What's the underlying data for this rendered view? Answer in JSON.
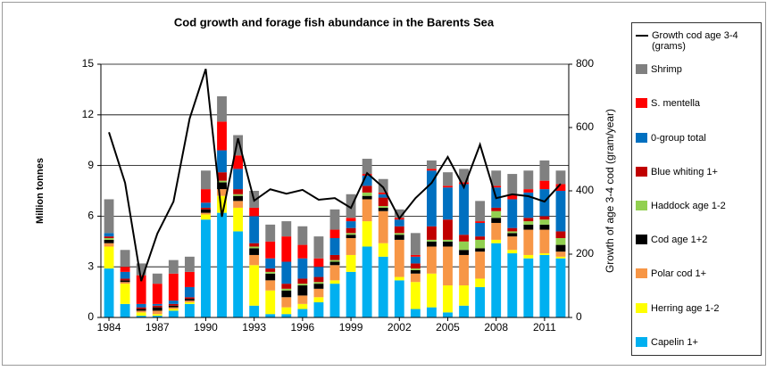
{
  "chart_data": {
    "type": "bar",
    "stacked": true,
    "title": "Cod growth and forage fish abundance in the Barents Sea",
    "ylabel": "Million tonnes",
    "y2label": "Growth of age 3-4 cod (gram/year)",
    "categories": [
      "1984",
      null,
      null,
      "1987",
      null,
      null,
      "1990",
      null,
      null,
      "1993",
      null,
      null,
      "1996",
      null,
      null,
      "1999",
      null,
      null,
      "2002",
      null,
      null,
      "2005",
      null,
      null,
      "2008",
      null,
      null,
      "2011",
      null
    ],
    "ylim": [
      0,
      15
    ],
    "yticks": [
      0,
      3,
      6,
      9,
      12,
      15
    ],
    "y2lim": [
      0,
      800
    ],
    "y2ticks": [
      0,
      200,
      400,
      600,
      800
    ],
    "grid": true,
    "legend": "right",
    "series": [
      {
        "name": "Capelin 1+",
        "color": "#00b0f0",
        "values": [
          2.9,
          0.8,
          0.1,
          0.1,
          0.4,
          0.8,
          5.8,
          6.2,
          5.1,
          0.7,
          0.2,
          0.2,
          0.5,
          0.9,
          2.0,
          2.7,
          4.2,
          3.6,
          2.2,
          0.5,
          0.6,
          0.3,
          0.7,
          1.8,
          4.4,
          3.8,
          3.5,
          3.7,
          3.5
        ]
      },
      {
        "name": "Herring age 1-2",
        "color": "#ffff00",
        "values": [
          1.3,
          1.2,
          0.2,
          0.1,
          0.1,
          0.1,
          0.3,
          1.0,
          1.4,
          2.4,
          1.4,
          0.4,
          0.3,
          0.3,
          0.2,
          1.0,
          1.5,
          0.8,
          0.2,
          1.6,
          2.0,
          1.6,
          1.2,
          0.5,
          0.2,
          0.2,
          0.2,
          0.1,
          0.1
        ]
      },
      {
        "name": "Polar cod 1+",
        "color": "#f79646",
        "values": [
          0.2,
          0.1,
          0.1,
          0.2,
          0.1,
          0.1,
          0.1,
          0.4,
          0.4,
          0.6,
          0.6,
          0.6,
          0.5,
          0.5,
          0.9,
          1.0,
          1.3,
          1.9,
          2.2,
          0.5,
          1.6,
          2.3,
          1.8,
          1.6,
          1.0,
          0.8,
          1.5,
          1.4,
          0.3
        ]
      },
      {
        "name": "Cod age 1+2",
        "color": "#000000",
        "values": [
          0.2,
          0.1,
          0.1,
          0.2,
          0.1,
          0.1,
          0.2,
          0.4,
          0.3,
          0.4,
          0.4,
          0.4,
          0.6,
          0.3,
          0.2,
          0.2,
          0.2,
          0.2,
          0.3,
          0.2,
          0.3,
          0.3,
          0.3,
          0.2,
          0.3,
          0.2,
          0.3,
          0.3,
          0.4
        ]
      },
      {
        "name": "Haddock age 1-2",
        "color": "#92d050",
        "values": [
          0.1,
          0,
          0,
          0,
          0,
          0,
          0,
          0.1,
          0.1,
          0.1,
          0.1,
          0.1,
          0.1,
          0.1,
          0.1,
          0.1,
          0.2,
          0.1,
          0.1,
          0.1,
          0.1,
          0.1,
          0.5,
          0.5,
          0.4,
          0.1,
          0.2,
          0.3,
          0.4
        ]
      },
      {
        "name": "Blue whiting 1+",
        "color": "#c00000",
        "values": [
          0.1,
          0.1,
          0.1,
          0.1,
          0.1,
          0.1,
          0.1,
          0.5,
          0.3,
          0.2,
          0.2,
          0.3,
          0.3,
          0.3,
          0.3,
          0.3,
          0.4,
          0.5,
          0.4,
          0.3,
          0.8,
          1.2,
          0.4,
          0.2,
          0.2,
          0.2,
          0.2,
          0.2,
          0.4
        ]
      },
      {
        "name": "0-group total",
        "color": "#0070c0",
        "values": [
          0.2,
          0.4,
          0.2,
          0.1,
          0.2,
          0.6,
          0.3,
          1.3,
          1.2,
          1.6,
          0.6,
          1.3,
          1.2,
          0.6,
          1.0,
          0.4,
          0.6,
          0.2,
          0.4,
          0.4,
          3.3,
          1.9,
          3.0,
          0.8,
          1.2,
          1.7,
          1.5,
          1.6,
          2.4
        ]
      },
      {
        "name": "S. mentella",
        "color": "#ff0000",
        "values": [
          0,
          0.3,
          1.7,
          1.2,
          1.6,
          0.9,
          0.8,
          1.7,
          0.8,
          0.5,
          1.0,
          1.5,
          0.8,
          0.5,
          0.5,
          0.2,
          0.1,
          0.1,
          0.1,
          0.1,
          0.1,
          0.1,
          0.1,
          0.1,
          0.1,
          0.3,
          0.2,
          0.5,
          0.4
        ]
      },
      {
        "name": "Shrimp",
        "color": "#808080",
        "values": [
          2.0,
          1.0,
          0.7,
          0.6,
          0.8,
          0.9,
          1.1,
          1.5,
          1.2,
          1.0,
          1.0,
          0.9,
          1.1,
          1.3,
          1.2,
          1.4,
          0.9,
          0.8,
          0.5,
          1.3,
          0.5,
          0.8,
          0.8,
          1.2,
          0.9,
          1.2,
          1.1,
          1.2,
          0.8
        ]
      },
      {
        "name": "Growth cod age 3-4 (grams)",
        "color": "#000000",
        "type": "line",
        "axis": "y2",
        "values": [
          585,
          425,
          115,
          265,
          366,
          628,
          785,
          318,
          566,
          369,
          405,
          391,
          403,
          372,
          377,
          346,
          456,
          411,
          313,
          377,
          425,
          507,
          411,
          546,
          377,
          389,
          383,
          366,
          422
        ]
      }
    ]
  }
}
